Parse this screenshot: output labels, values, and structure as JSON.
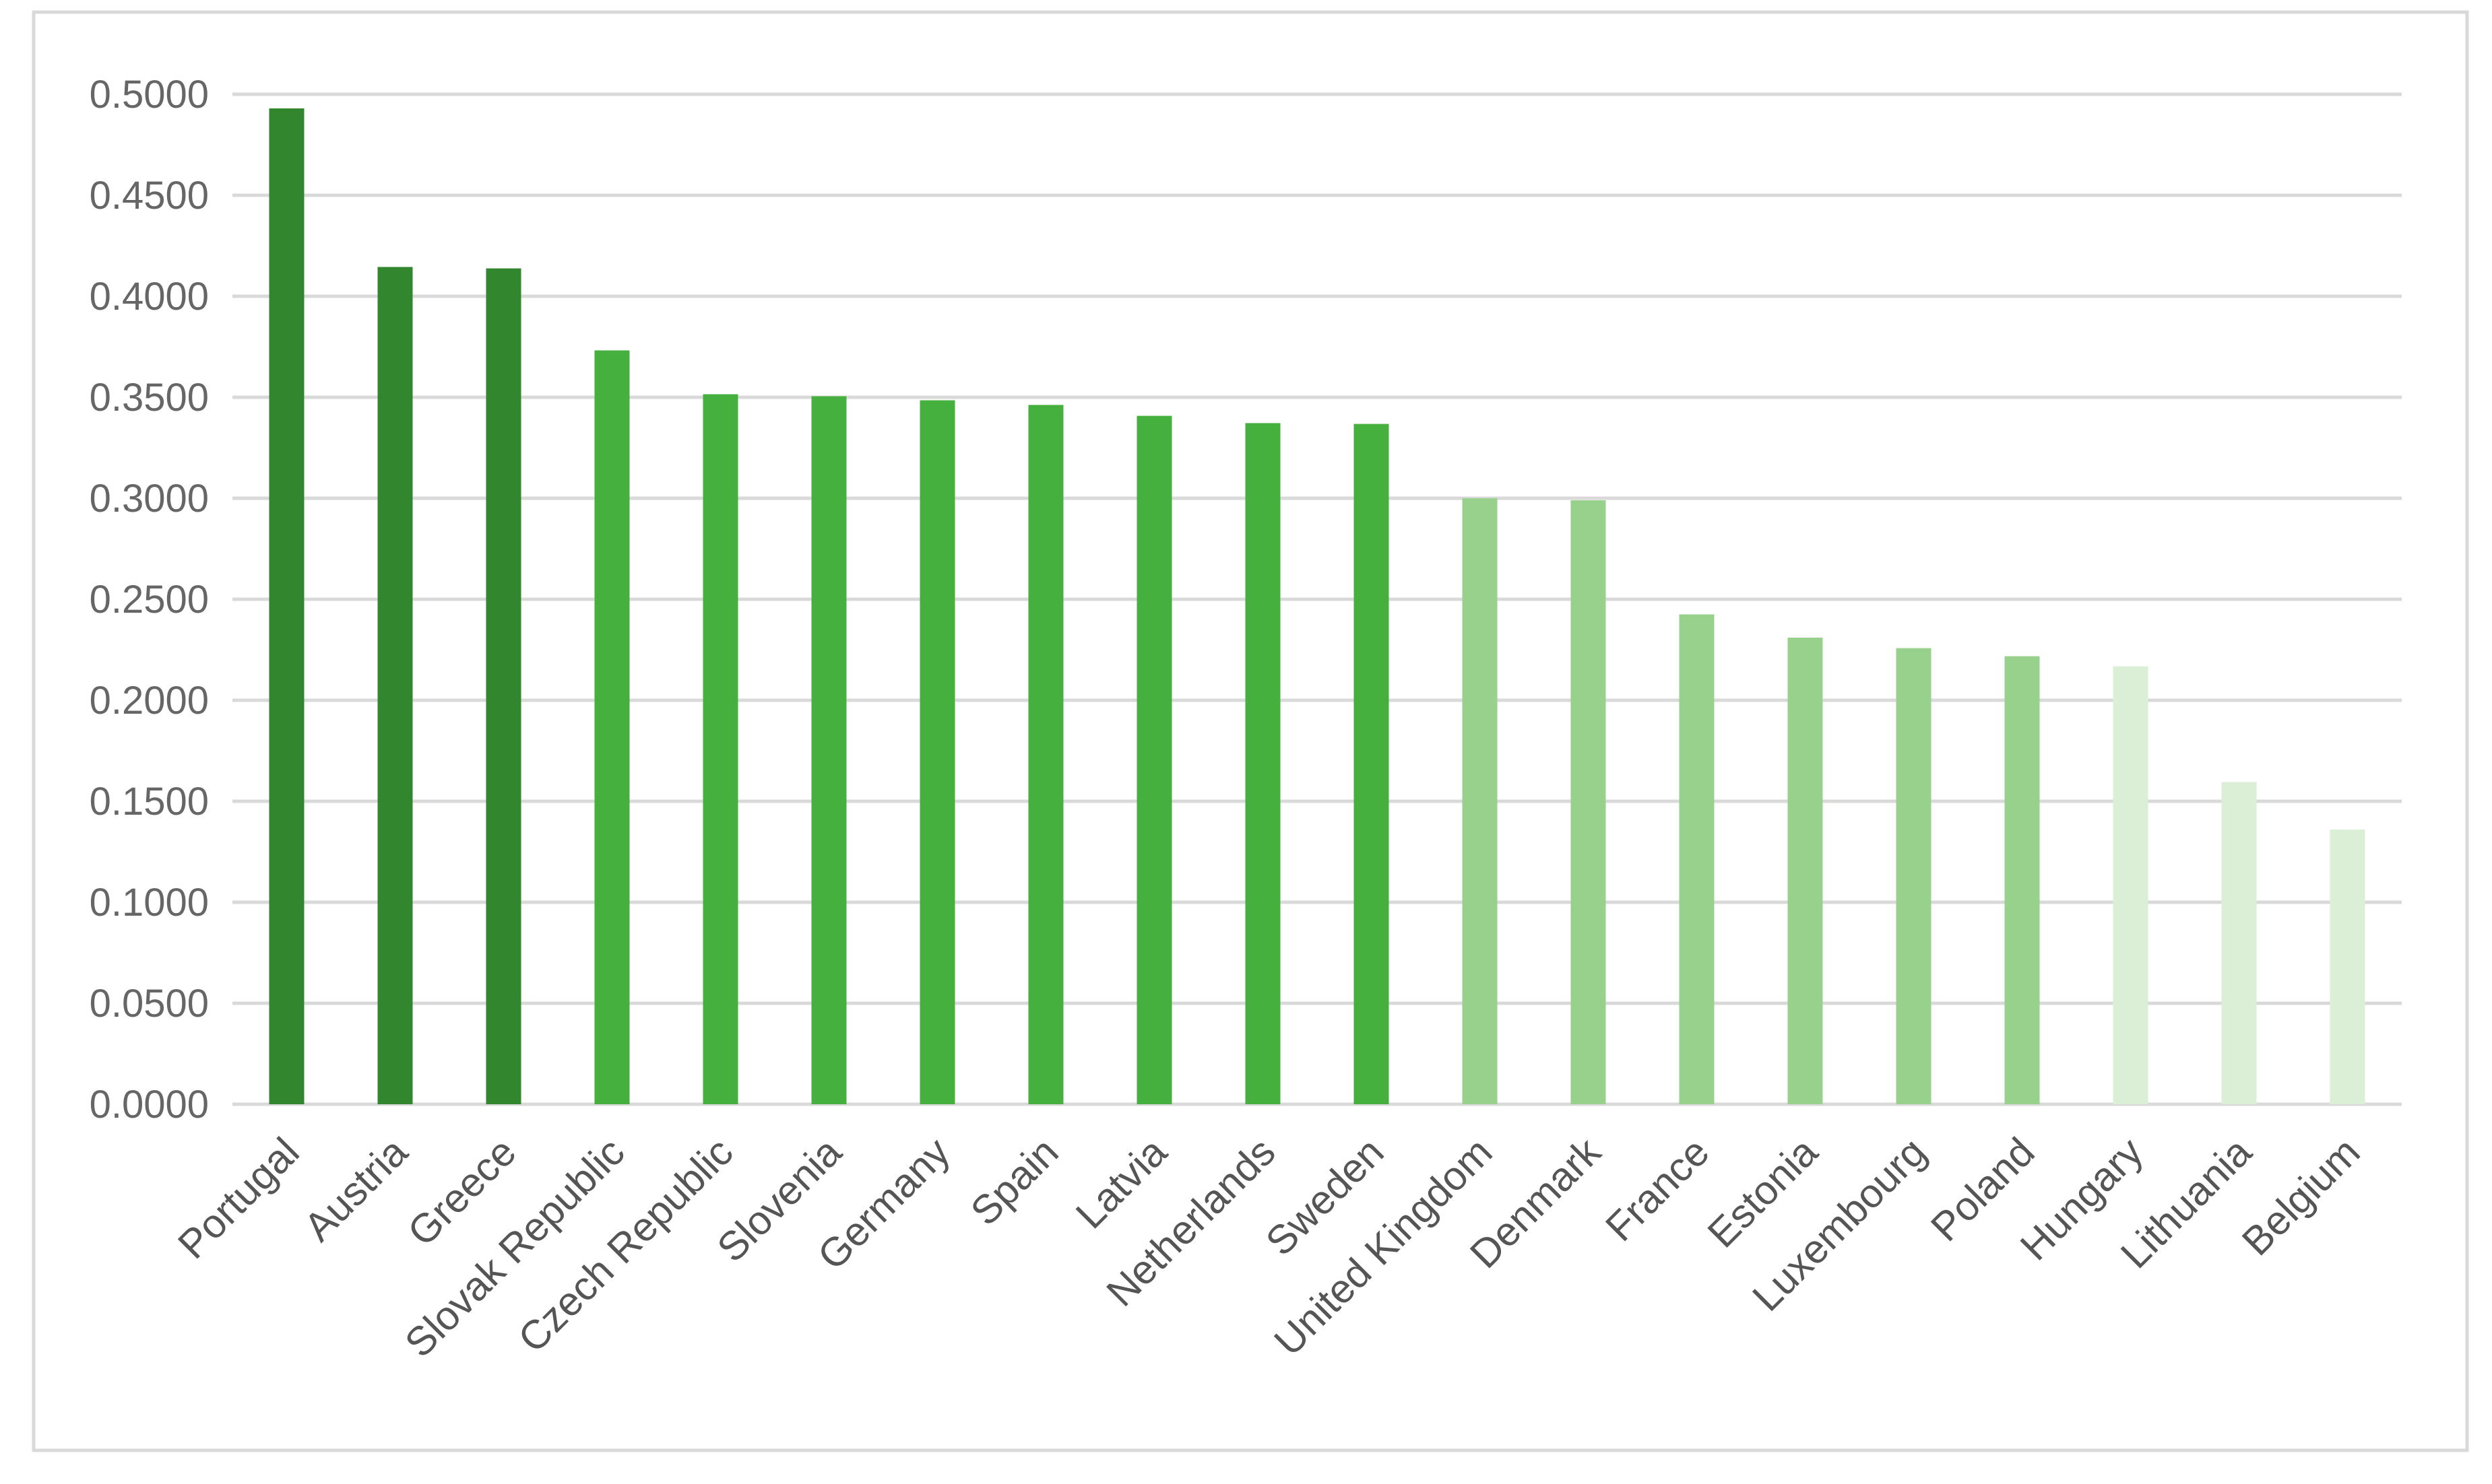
{
  "chart_data": {
    "type": "bar",
    "title": "",
    "xlabel": "",
    "ylabel": "",
    "ylim": [
      0,
      0.5
    ],
    "yticks": [
      "0.0000",
      "0.0500",
      "0.1000",
      "0.1500",
      "0.2000",
      "0.2500",
      "0.3000",
      "0.3500",
      "0.4000",
      "0.4500",
      "0.5000"
    ],
    "grid": true,
    "legend": "none",
    "categories": [
      "Portugal",
      "Austria",
      "Greece",
      "Slovak Republic",
      "Czech Republic",
      "Slovenia",
      "Germany",
      "Spain",
      "Latvia",
      "Netherlands",
      "Sweden",
      "United Kingdom",
      "Denmark",
      "France",
      "Estonia",
      "Luxembourg",
      "Poland",
      "Hungary",
      "Lithuania",
      "Belgium"
    ],
    "values": [
      0.493,
      0.4145,
      0.4138,
      0.3732,
      0.3515,
      0.3505,
      0.3485,
      0.3462,
      0.3408,
      0.3372,
      0.3368,
      0.3,
      0.299,
      0.2425,
      0.231,
      0.2258,
      0.2218,
      0.2168,
      0.1595,
      0.136
    ],
    "bar_colors": [
      "#31862e",
      "#31862e",
      "#31862e",
      "#46b03e",
      "#46b03e",
      "#46b03e",
      "#46b03e",
      "#46b03e",
      "#46b03e",
      "#46b03e",
      "#46b03e",
      "#97d18b",
      "#97d18b",
      "#97d18b",
      "#97d18b",
      "#97d18b",
      "#97d18b",
      "#dbefd7",
      "#dbefd7",
      "#dbefd7"
    ],
    "colors": {
      "gridline": "#d9d9d9",
      "border": "#d9d9d9",
      "tick_text": "#666666",
      "category_text": "#555555"
    }
  }
}
